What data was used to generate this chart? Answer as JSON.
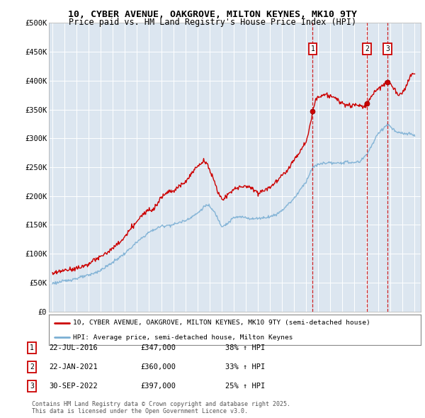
{
  "title1": "10, CYBER AVENUE, OAKGROVE, MILTON KEYNES, MK10 9TY",
  "title2": "Price paid vs. HM Land Registry's House Price Index (HPI)",
  "legend_line1": "10, CYBER AVENUE, OAKGROVE, MILTON KEYNES, MK10 9TY (semi-detached house)",
  "legend_line2": "HPI: Average price, semi-detached house, Milton Keynes",
  "transactions": [
    {
      "id": 1,
      "date": "22-JUL-2016",
      "price": 347000,
      "pct": "38%",
      "x_year": 2016.55
    },
    {
      "id": 2,
      "date": "22-JAN-2021",
      "price": 360000,
      "pct": "33%",
      "x_year": 2021.05
    },
    {
      "id": 3,
      "date": "30-SEP-2022",
      "price": 397000,
      "pct": "25%",
      "x_year": 2022.75
    }
  ],
  "footnote": "Contains HM Land Registry data © Crown copyright and database right 2025.\nThis data is licensed under the Open Government Licence v3.0.",
  "hpi_color": "#7bafd4",
  "price_color": "#cc0000",
  "dashed_color": "#cc0000",
  "plot_bg_color": "#dce6f0",
  "ylim": [
    0,
    500000
  ],
  "yticks": [
    0,
    50000,
    100000,
    150000,
    200000,
    250000,
    300000,
    350000,
    400000,
    450000,
    500000
  ],
  "xlim_start": 1994.7,
  "xlim_end": 2025.5
}
